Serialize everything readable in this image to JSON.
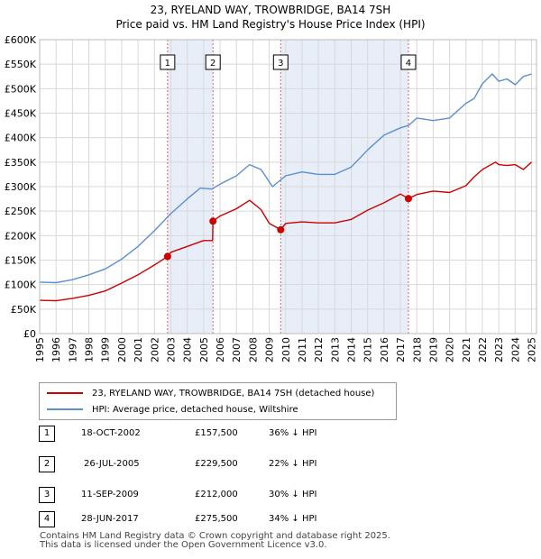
{
  "chart_data": {
    "type": "line",
    "title": "23, RYELAND WAY, TROWBRIDGE, BA14 7SH",
    "subtitle": "Price paid vs. HM Land Registry's House Price Index (HPI)",
    "xlim": [
      1995,
      2025.3
    ],
    "ylim": [
      0,
      600000
    ],
    "y_ticks": [
      0,
      50000,
      100000,
      150000,
      200000,
      250000,
      300000,
      350000,
      400000,
      450000,
      500000,
      550000,
      600000
    ],
    "y_tick_labels": [
      "£0",
      "£50K",
      "£100K",
      "£150K",
      "£200K",
      "£250K",
      "£300K",
      "£350K",
      "£400K",
      "£450K",
      "£500K",
      "£550K",
      "£600K"
    ],
    "x_ticks": [
      1995,
      1996,
      1997,
      1998,
      1999,
      2000,
      2001,
      2002,
      2003,
      2004,
      2005,
      2006,
      2007,
      2008,
      2009,
      2010,
      2011,
      2012,
      2013,
      2014,
      2015,
      2016,
      2017,
      2018,
      2019,
      2020,
      2021,
      2022,
      2023,
      2024,
      2025
    ],
    "series": [
      {
        "name": "23, RYELAND WAY, TROWBRIDGE, BA14 7SH (detached house)",
        "color": "#cc0000",
        "x": [
          1995,
          1996,
          1997,
          1998,
          1999,
          2000,
          2001,
          2002,
          2002.8,
          2003,
          2004,
          2005,
          2005.55,
          2005.57,
          2006,
          2007,
          2007.8,
          2008.5,
          2009,
          2009.7,
          2010,
          2011,
          2012,
          2013,
          2014,
          2015,
          2016,
          2017,
          2017.5,
          2018,
          2019,
          2020,
          2021,
          2021.5,
          2022,
          2022.8,
          2023,
          2023.5,
          2024,
          2024.5,
          2025
        ],
        "values": [
          68000,
          67000,
          72000,
          78000,
          87000,
          103000,
          120000,
          140000,
          157500,
          166000,
          178000,
          190000,
          190000,
          229500,
          240000,
          255000,
          272000,
          253000,
          225000,
          212000,
          225000,
          228000,
          226000,
          226000,
          233000,
          252000,
          267000,
          285000,
          275500,
          284000,
          291000,
          288000,
          302000,
          320000,
          335000,
          350000,
          345000,
          343000,
          345000,
          335000,
          350000
        ]
      },
      {
        "name": "HPI: Average price, detached house, Wiltshire",
        "color": "#5b8fd0",
        "x": [
          1995,
          1996,
          1997,
          1998,
          1999,
          2000,
          2001,
          2002,
          2003,
          2004,
          2004.8,
          2005.5,
          2006,
          2007,
          2007.8,
          2008.5,
          2009.2,
          2010,
          2011,
          2012,
          2013,
          2014,
          2015,
          2016,
          2017,
          2017.5,
          2018,
          2019,
          2020,
          2021,
          2021.5,
          2022,
          2022.6,
          2023,
          2023.5,
          2024,
          2024.5,
          2025
        ],
        "values": [
          105000,
          104000,
          110000,
          120000,
          132000,
          152000,
          178000,
          210000,
          245000,
          275000,
          297000,
          295000,
          305000,
          322000,
          345000,
          335000,
          300000,
          322000,
          330000,
          325000,
          325000,
          340000,
          375000,
          405000,
          420000,
          425000,
          440000,
          435000,
          440000,
          470000,
          480000,
          510000,
          530000,
          515000,
          520000,
          508000,
          525000,
          530000
        ]
      }
    ],
    "markers": [
      {
        "label": "1",
        "x": 2002.8,
        "y": 157500
      },
      {
        "label": "2",
        "x": 2005.57,
        "y": 229500
      },
      {
        "label": "3",
        "x": 2009.7,
        "y": 212000
      },
      {
        "label": "4",
        "x": 2017.49,
        "y": 275500
      }
    ],
    "shaded_periods": [
      [
        2002.8,
        2005.57
      ],
      [
        2009.7,
        2017.49
      ]
    ]
  },
  "legend": {
    "property_label": "23, RYELAND WAY, TROWBRIDGE, BA14 7SH (detached house)",
    "hpi_label": "HPI: Average price, detached house, Wiltshire"
  },
  "sales": [
    {
      "num": "1",
      "date": "18-OCT-2002",
      "price": "£157,500",
      "hpi": "36% ↓ HPI"
    },
    {
      "num": "2",
      "date": "26-JUL-2005",
      "price": "£229,500",
      "hpi": "22% ↓ HPI"
    },
    {
      "num": "3",
      "date": "11-SEP-2009",
      "price": "£212,000",
      "hpi": "30% ↓ HPI"
    },
    {
      "num": "4",
      "date": "28-JUN-2017",
      "price": "£275,500",
      "hpi": "34% ↓ HPI"
    }
  ],
  "footer": {
    "line1": "Contains HM Land Registry data © Crown copyright and database right 2025.",
    "line2": "This data is licensed under the Open Government Licence v3.0."
  }
}
